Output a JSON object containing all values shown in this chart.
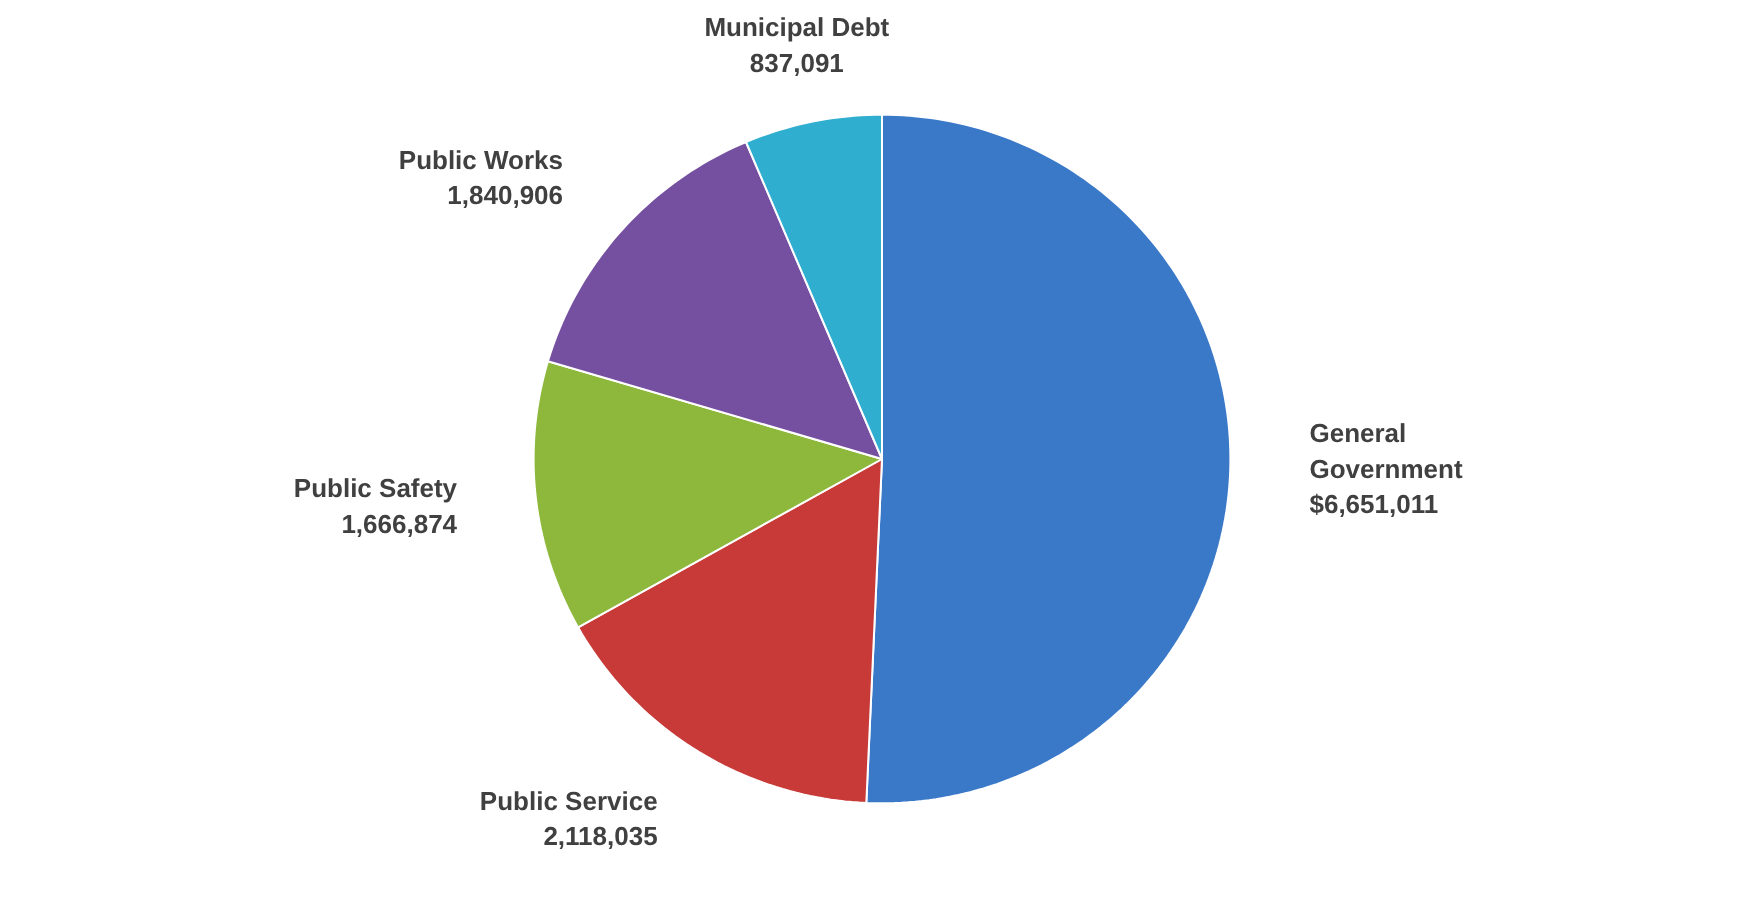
{
  "chart_data": {
    "type": "pie",
    "categories": [
      "General Government",
      "Public Service",
      "Public Safety",
      "Public Works",
      "Municipal Debt"
    ],
    "values": [
      6651011,
      2118035,
      1666874,
      1840906,
      837091
    ],
    "value_labels": [
      "$6,651,011",
      "2,118,035",
      "1,666,874",
      "1,840,906",
      "837,091"
    ],
    "colors": [
      "#3a78c8",
      "#c83a38",
      "#8db83c",
      "#7550a0",
      "#30aed0"
    ]
  }
}
